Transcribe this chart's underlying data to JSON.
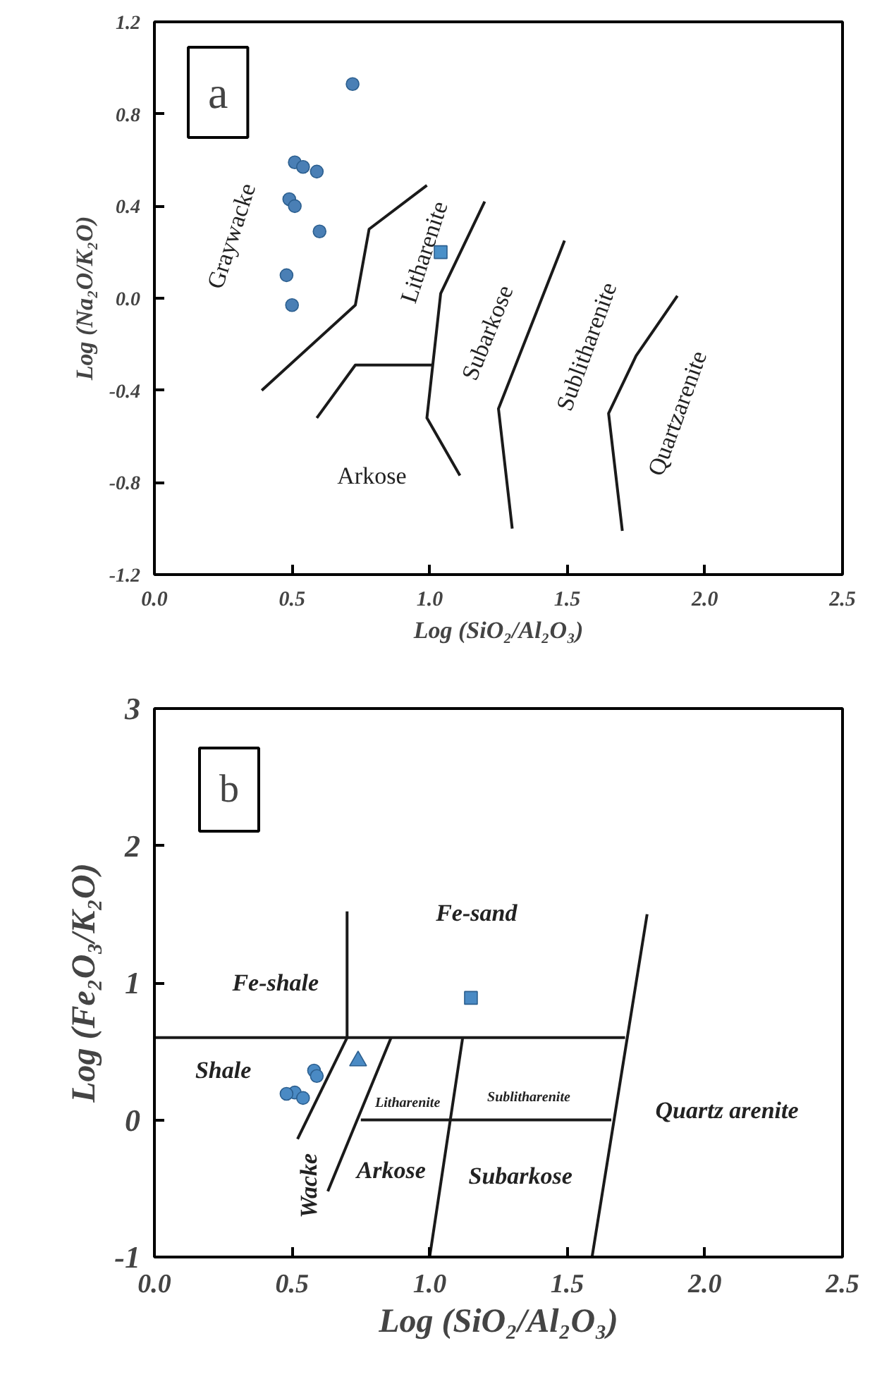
{
  "chart_data": [
    {
      "type": "scatter",
      "title": "a",
      "xlabel": "Log (SiO₂/Al₂O₃)",
      "ylabel": "Log (Na₂O/K₂O)",
      "xlim": [
        0,
        2.5
      ],
      "ylim": [
        -1.2,
        1.2
      ],
      "xticks": [
        {
          "value": 0,
          "label": "0.0"
        },
        0.5,
        {
          "value": 1,
          "label": "1.0"
        },
        1.5,
        {
          "value": 2,
          "label": "2.0"
        },
        2.5
      ],
      "yticks": [
        -1.2,
        -0.8,
        -0.4,
        {
          "value": 0,
          "label": "0.0"
        },
        0.4,
        0.8,
        1.2
      ],
      "series": [
        {
          "marker": "circle",
          "color": "#4a7fb5",
          "x": [
            0.72,
            0.51,
            0.54,
            0.59,
            0.49,
            0.51,
            0.6,
            0.48,
            0.5
          ],
          "values": [
            0.93,
            0.59,
            0.57,
            0.55,
            0.43,
            0.4,
            0.29,
            0.1,
            -0.03
          ]
        },
        {
          "marker": "square",
          "color": "#4a90c8",
          "x": [
            1.04
          ],
          "values": [
            0.2
          ]
        },
        {
          "type": "line",
          "color": "#1a1a1a",
          "x": [
            0.39,
            0.73,
            0.78,
            0.99
          ],
          "values": [
            -0.4,
            -0.03,
            0.3,
            0.49
          ]
        },
        {
          "type": "line",
          "color": "#1a1a1a",
          "x": [
            0.59,
            0.73,
            1.01
          ],
          "values": [
            -0.52,
            -0.29,
            -0.29
          ]
        },
        {
          "type": "line",
          "color": "#1a1a1a",
          "x": [
            1.2,
            1.04,
            0.99,
            1.11
          ],
          "values": [
            0.42,
            0.02,
            -0.52,
            -0.77
          ]
        },
        {
          "type": "line",
          "color": "#1a1a1a",
          "x": [
            1.49,
            1.25,
            1.3
          ],
          "values": [
            0.25,
            -0.48,
            -1.0
          ]
        },
        {
          "type": "line",
          "color": "#1a1a1a",
          "x": [
            1.9,
            1.75,
            1.65,
            1.7
          ],
          "values": [
            0.01,
            -0.25,
            -0.5,
            -1.01
          ]
        }
      ],
      "annotations": [
        "Graywacke",
        "Litharenite",
        "Subarkose",
        "Sublitharenite",
        "Quartzarenite",
        "Arkose"
      ]
    },
    {
      "type": "scatter",
      "title": "b",
      "xlabel": "Log (SiO₂/Al₂O₃)",
      "ylabel": "Log (Fe₂O₃/K₂O)",
      "xlim": [
        0,
        2.5
      ],
      "ylim": [
        -1,
        3
      ],
      "xticks": [
        {
          "value": 0,
          "label": "0.0"
        },
        0.5,
        {
          "value": 1,
          "label": "1.0"
        },
        1.5,
        {
          "value": 2,
          "label": "2.0"
        },
        2.5
      ],
      "yticks": [
        -1,
        0,
        1,
        2,
        3
      ],
      "series": [
        {
          "marker": "circle",
          "color": "#4a8ac4",
          "x": [
            0.58,
            0.59,
            0.51,
            0.54,
            0.48
          ],
          "values": [
            0.36,
            0.32,
            0.2,
            0.16,
            0.19
          ]
        },
        {
          "marker": "triangle",
          "color": "#4a8ac4",
          "x": [
            0.74
          ],
          "values": [
            0.43
          ]
        },
        {
          "marker": "square",
          "color": "#4a8ac4",
          "x": [
            1.15
          ],
          "values": [
            0.89
          ]
        },
        {
          "type": "line",
          "color": "#1a1a1a",
          "x": [
            0,
            1.71
          ],
          "values": [
            0.6,
            0.6
          ]
        },
        {
          "type": "line",
          "color": "#1a1a1a",
          "x": [
            0.7,
            0.7
          ],
          "values": [
            1.52,
            0.6
          ]
        },
        {
          "type": "line",
          "color": "#1a1a1a",
          "x": [
            1.79,
            1.59
          ],
          "values": [
            1.5,
            -1
          ]
        },
        {
          "type": "line",
          "color": "#1a1a1a",
          "x": [
            0.52,
            0.7
          ],
          "values": [
            -0.14,
            0.6
          ]
        },
        {
          "type": "line",
          "color": "#1a1a1a",
          "x": [
            0.63,
            0.86
          ],
          "values": [
            -0.52,
            0.6
          ]
        },
        {
          "type": "line",
          "color": "#1a1a1a",
          "x": [
            0.75,
            1.66
          ],
          "values": [
            0,
            0
          ]
        },
        {
          "type": "line",
          "color": "#1a1a1a",
          "x": [
            1.12,
            1.0
          ],
          "values": [
            0.6,
            -1
          ]
        }
      ],
      "annotations": [
        "Fe-sand",
        "Fe-shale",
        "Shale",
        "Litharenite",
        "Sublitharenite",
        "Quartz arenite",
        "Arkose",
        "Subarkose",
        "Wacke"
      ]
    }
  ]
}
